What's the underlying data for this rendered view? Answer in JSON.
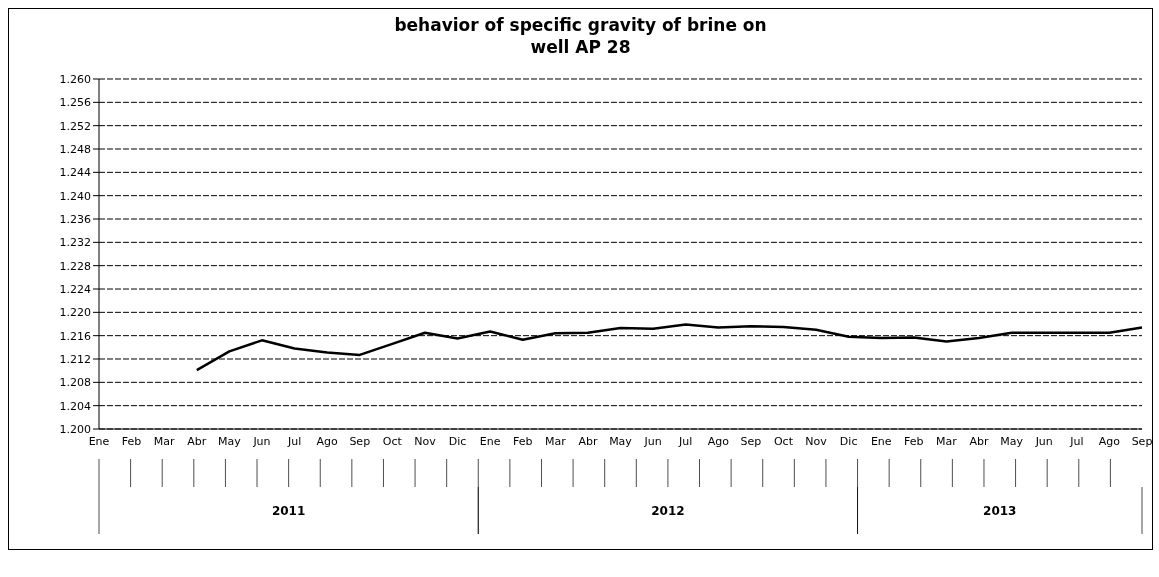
{
  "chart_data": {
    "type": "line",
    "title": "behavior of specific gravity of brine on\nwell AP 28",
    "categories": [
      "Ene",
      "Feb",
      "Mar",
      "Abr",
      "May",
      "Jun",
      "Jul",
      "Ago",
      "Sep",
      "Oct",
      "Nov",
      "Dic",
      "Ene",
      "Feb",
      "Mar",
      "Abr",
      "May",
      "Jun",
      "Jul",
      "Ago",
      "Sep",
      "Oct",
      "Nov",
      "Dic",
      "Ene",
      "Feb",
      "Mar",
      "Abr",
      "May",
      "Jun",
      "Jul",
      "Ago",
      "Sep"
    ],
    "series": [
      {
        "color": "#000000",
        "values": [
          null,
          null,
          null,
          1.2101,
          1.2133,
          1.2152,
          1.2138,
          1.2131,
          1.2127,
          1.2146,
          1.2165,
          1.2155,
          1.2167,
          1.2153,
          1.2164,
          1.2165,
          1.2173,
          1.2172,
          1.2179,
          1.2174,
          1.2176,
          1.2175,
          1.217,
          1.2158,
          1.2156,
          1.2157,
          1.215,
          1.2156,
          1.2165,
          1.2165,
          1.2165,
          1.2165,
          1.2174
        ]
      }
    ],
    "ylim": [
      1.2,
      1.26
    ],
    "yticks": [
      {
        "value": 1.2,
        "label": "1.200"
      },
      {
        "value": 1.204,
        "label": "1.204"
      },
      {
        "value": 1.208,
        "label": "1.208"
      },
      {
        "value": 1.212,
        "label": "1.212"
      },
      {
        "value": 1.216,
        "label": "1.216"
      },
      {
        "value": 1.22,
        "label": "1.220"
      },
      {
        "value": 1.224,
        "label": "1.224"
      },
      {
        "value": 1.228,
        "label": "1.228"
      },
      {
        "value": 1.232,
        "label": "1.232"
      },
      {
        "value": 1.236,
        "label": "1.236"
      },
      {
        "value": 1.24,
        "label": "1.240"
      },
      {
        "value": 1.244,
        "label": "1.244"
      },
      {
        "value": 1.248,
        "label": "1.248"
      },
      {
        "value": 1.252,
        "label": "1.252"
      },
      {
        "value": 1.256,
        "label": "1.256"
      },
      {
        "value": 1.26,
        "label": "1.260"
      }
    ],
    "annotations": [
      "2011",
      "2012",
      "2013"
    ],
    "grid": "y",
    "legend": false,
    "marker": "none",
    "line_style": "solid"
  }
}
